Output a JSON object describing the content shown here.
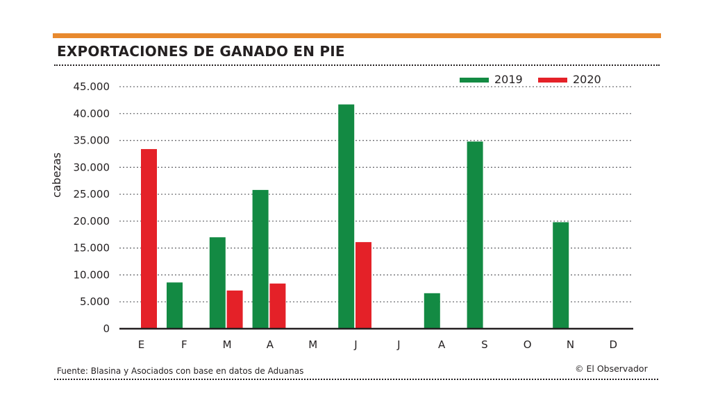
{
  "header": {
    "title": "EXPORTACIONES DE GANADO EN PIE"
  },
  "footer": {
    "source": "Fuente: Blasina y Asociados con base en datos de Aduanas",
    "credit": "© El Observador"
  },
  "colors": {
    "accent_rule": "#e8892e",
    "series_2019": "#138a43",
    "series_2020": "#e42128"
  },
  "chart_data": {
    "type": "bar",
    "title": "EXPORTACIONES DE GANADO EN PIE",
    "xlabel": "",
    "ylabel": "cabezas",
    "ylim": [
      0,
      45000
    ],
    "yticks": [
      0,
      5000,
      10000,
      15000,
      20000,
      25000,
      30000,
      35000,
      40000,
      45000
    ],
    "ytick_labels": [
      "0",
      "5.000",
      "10.000",
      "15.000",
      "20.000",
      "25.000",
      "30.000",
      "35.000",
      "40.000",
      "45.000"
    ],
    "grid": true,
    "legend_position": "top-right",
    "categories": [
      "E",
      "F",
      "M",
      "A",
      "M",
      "J",
      "J",
      "A",
      "S",
      "O",
      "N",
      "D"
    ],
    "series": [
      {
        "name": "2019",
        "color": "#138a43",
        "values": [
          0,
          8600,
          17000,
          25800,
          0,
          41700,
          0,
          6600,
          34800,
          0,
          19800,
          0
        ]
      },
      {
        "name": "2020",
        "color": "#e42128",
        "values": [
          33400,
          0,
          7100,
          8400,
          0,
          16100,
          0,
          0,
          0,
          0,
          0,
          0
        ]
      }
    ]
  }
}
